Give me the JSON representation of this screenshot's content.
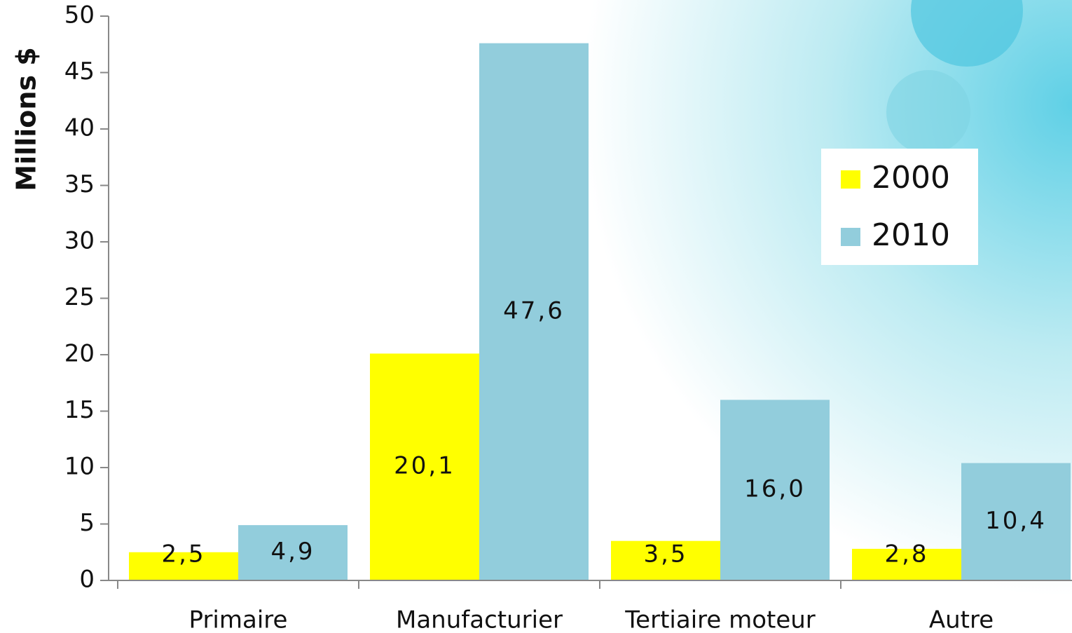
{
  "chart_data": {
    "type": "bar",
    "y_label": "Millions $",
    "categories": [
      "Primaire",
      "Manufacturier",
      "Tertiaire moteur",
      "Autre"
    ],
    "series": [
      {
        "name": "2000",
        "color": "#ffff00",
        "values": [
          2.5,
          20.1,
          3.5,
          2.8
        ],
        "value_labels": [
          "2,5",
          "20,1",
          "3,5",
          "2,8"
        ]
      },
      {
        "name": "2010",
        "color": "#92cddc",
        "values": [
          4.9,
          47.6,
          16.0,
          10.4
        ],
        "value_labels": [
          "4,9",
          "47,6",
          "16,0",
          "10,4"
        ]
      }
    ],
    "ylim": [
      0,
      50
    ],
    "yticks": [
      0,
      5,
      10,
      15,
      20,
      25,
      30,
      35,
      40,
      45,
      50
    ],
    "legend": "upper right"
  }
}
